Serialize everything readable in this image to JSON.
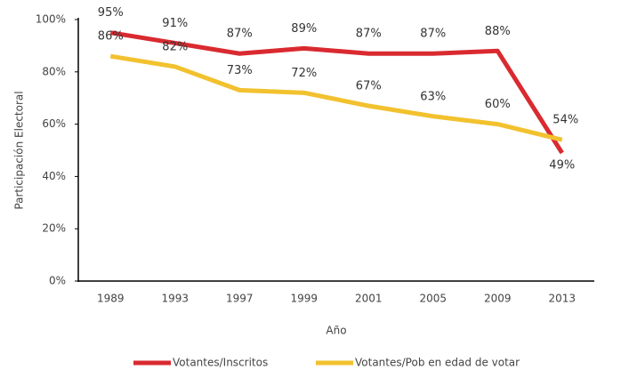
{
  "chart_data": {
    "type": "line",
    "y_axis_label": "Participación Electoral",
    "x_axis_label": "Año",
    "categories": [
      "1989",
      "1993",
      "1997",
      "1999",
      "2001",
      "2005",
      "2009",
      "2013"
    ],
    "series": [
      {
        "name": "Votantes/Inscritos",
        "color": "#d92a30",
        "values": [
          95,
          91,
          87,
          89,
          87,
          87,
          88,
          49
        ],
        "value_labels": [
          "95%",
          "91%",
          "87%",
          "89%",
          "87%",
          "87%",
          "88%",
          "49%"
        ]
      },
      {
        "name": "Votantes/Pob en edad de votar",
        "color": "#f2c12e",
        "values": [
          86,
          82,
          73,
          72,
          67,
          63,
          60,
          54
        ],
        "value_labels": [
          "86%",
          "82%",
          "73%",
          "72%",
          "67%",
          "63%",
          "60%",
          "54%"
        ]
      }
    ],
    "ylim": [
      0,
      100
    ],
    "yticks": [
      {
        "value": 0,
        "label": "0%"
      },
      {
        "value": 20,
        "label": "20%"
      },
      {
        "value": 40,
        "label": "40%"
      },
      {
        "value": 60,
        "label": "60%"
      },
      {
        "value": 80,
        "label": "80%"
      },
      {
        "value": 100,
        "label": "100%"
      }
    ],
    "legend": "bottom"
  }
}
